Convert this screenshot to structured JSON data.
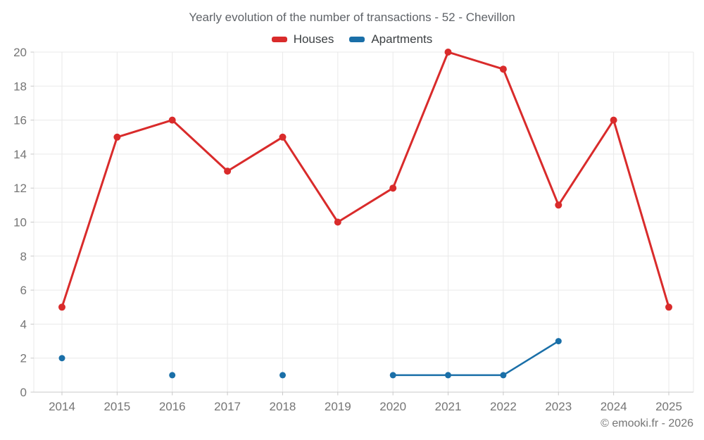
{
  "footer": "© emooki.fr - 2026",
  "chart_data": {
    "type": "line",
    "title": "Yearly evolution of the number of transactions - 52 - Chevillon",
    "categories": [
      "2014",
      "2015",
      "2016",
      "2017",
      "2018",
      "2019",
      "2020",
      "2021",
      "2022",
      "2023",
      "2024",
      "2025"
    ],
    "series": [
      {
        "name": "Houses",
        "color": "#d92b2b",
        "marker_radius": 5,
        "line_width": 3,
        "values": [
          5,
          15,
          16,
          13,
          15,
          10,
          12,
          20,
          19,
          11,
          16,
          5
        ]
      },
      {
        "name": "Apartments",
        "color": "#1a6fa8",
        "marker_radius": 4.5,
        "line_width": 2.5,
        "values": [
          2,
          null,
          1,
          null,
          1,
          null,
          1,
          1,
          1,
          3,
          null,
          null
        ]
      }
    ],
    "ylim": [
      0,
      20
    ],
    "yticks": [
      0,
      2,
      4,
      6,
      8,
      10,
      12,
      14,
      16,
      18,
      20
    ],
    "grid": true,
    "legend_position": "top",
    "colors": {
      "grid": "#e9e9e9",
      "axis": "#c8c8c8",
      "tick_label": "#757575",
      "title": "#5f6368",
      "legend_text": "#3c4043",
      "footer": "#757575"
    }
  }
}
